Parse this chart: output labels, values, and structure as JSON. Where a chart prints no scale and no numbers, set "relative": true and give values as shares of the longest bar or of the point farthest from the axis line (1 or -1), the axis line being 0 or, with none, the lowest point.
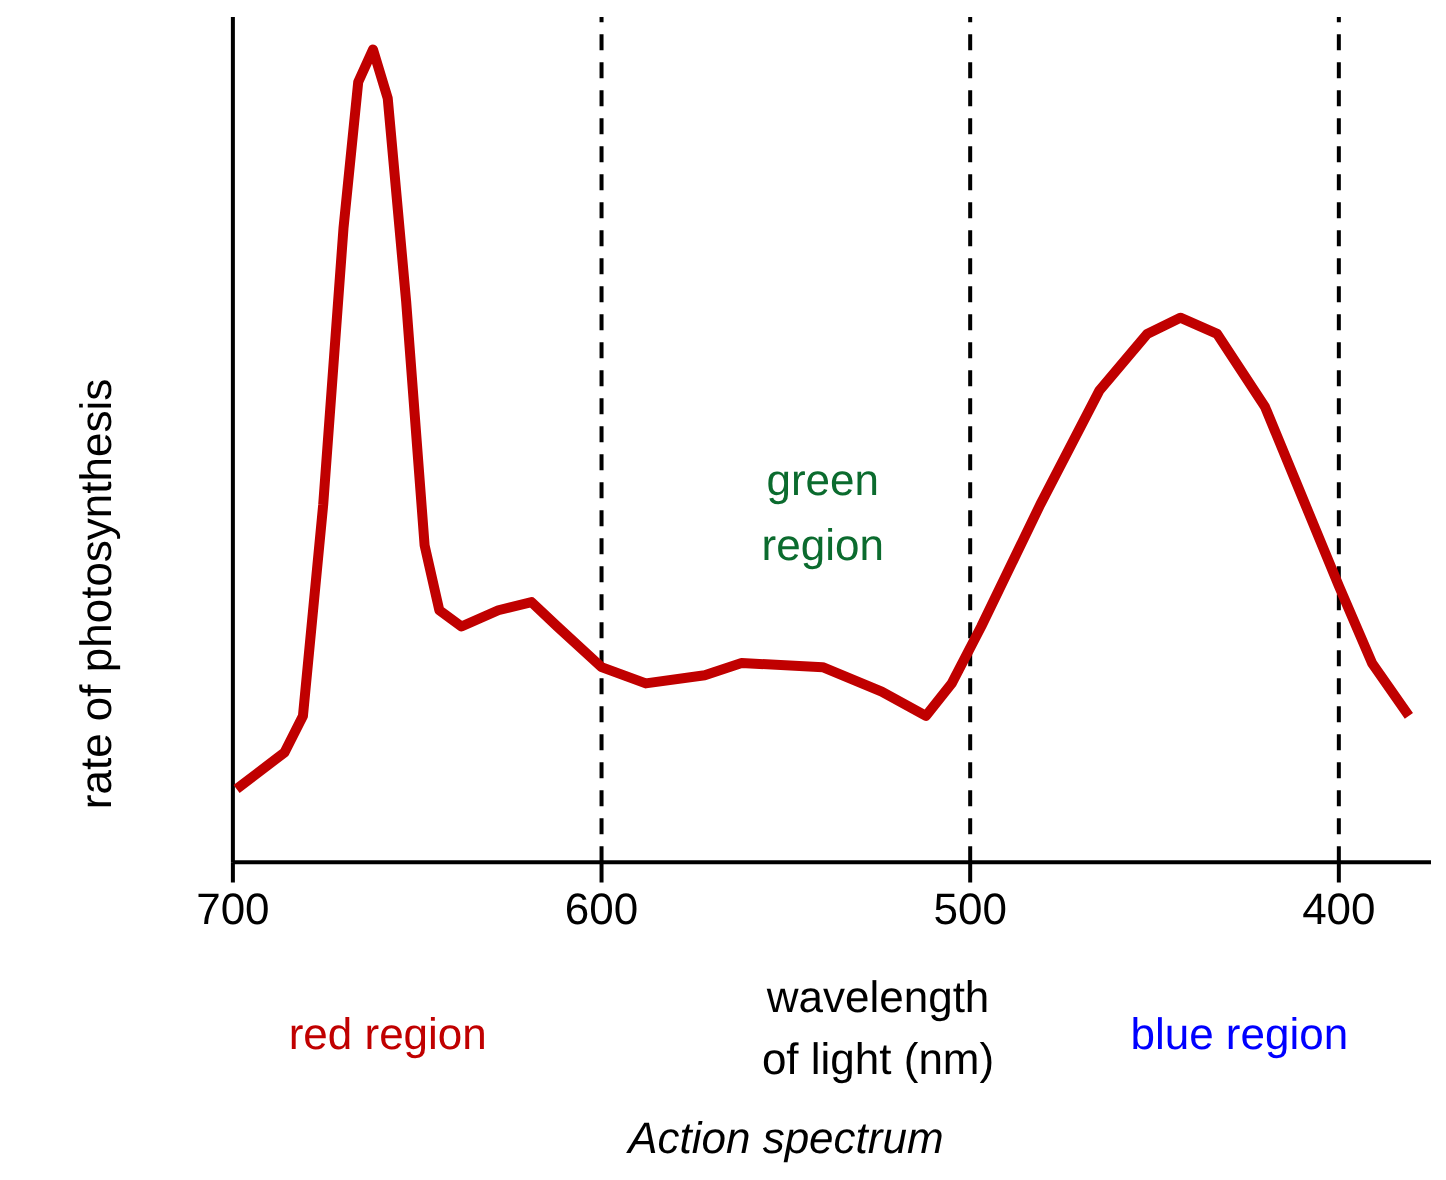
{
  "chart_data": {
    "type": "line",
    "relative": true,
    "xlabel": "wavelength\nof light (nm)",
    "ylabel": "rate of photosynthesis",
    "xlim": [
      700,
      375
    ],
    "xticks": [
      700,
      600,
      500,
      400
    ],
    "grid": false,
    "line_style": "solid",
    "x": [
      699,
      686,
      681,
      675.5,
      670,
      666,
      662,
      658,
      653,
      648,
      644,
      638,
      628,
      619,
      612,
      600,
      588,
      572,
      562,
      540,
      524,
      512,
      505,
      497,
      481,
      465,
      452,
      443,
      433,
      420,
      410,
      400,
      391,
      381
    ],
    "series": [
      {
        "color": "#c00000",
        "values": [
          0.09,
          0.135,
          0.18,
          0.44,
          0.78,
          0.96,
          1.0,
          0.94,
          0.69,
          0.39,
          0.31,
          0.29,
          0.31,
          0.32,
          0.29,
          0.24,
          0.22,
          0.23,
          0.245,
          0.24,
          0.21,
          0.18,
          0.22,
          0.29,
          0.44,
          0.58,
          0.65,
          0.67,
          0.65,
          0.56,
          0.45,
          0.34,
          0.245,
          0.18
        ]
      }
    ],
    "ref_lines": [
      {
        "axis": "x",
        "value": 600,
        "line_style": "dashed",
        "color": "#000000"
      },
      {
        "axis": "x",
        "value": 500,
        "line_style": "dashed",
        "color": "#000000"
      },
      {
        "axis": "x",
        "value": 400,
        "line_style": "dashed",
        "color": "#000000"
      }
    ],
    "annotations": [
      "green\nregion",
      "red region",
      "blue region",
      "Action spectrum"
    ]
  }
}
